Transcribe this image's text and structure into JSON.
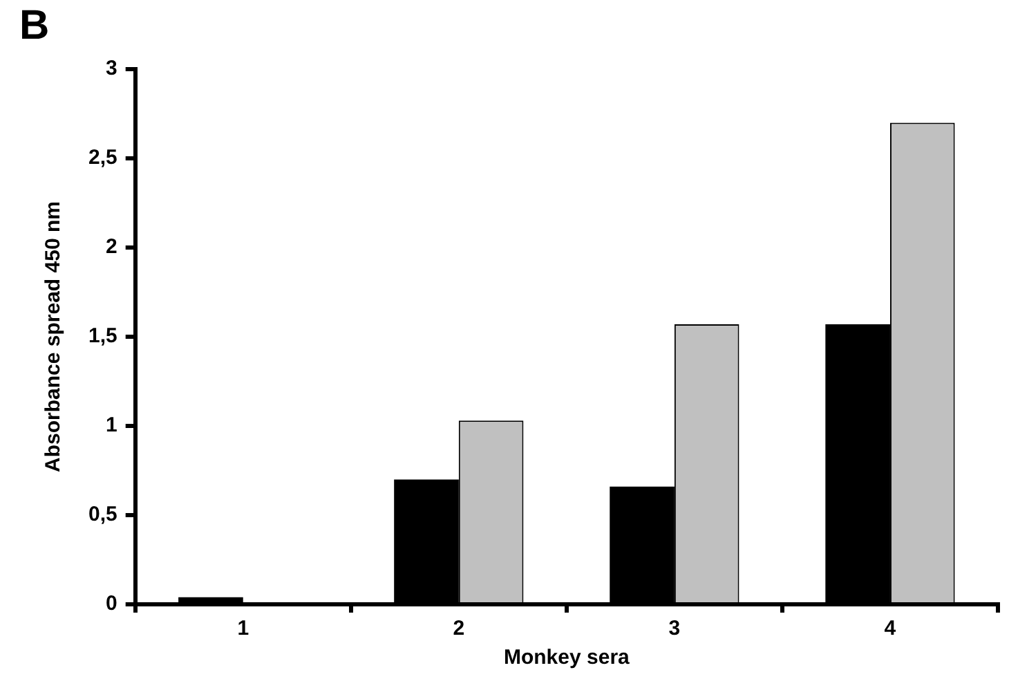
{
  "chart_data": {
    "type": "bar",
    "title": "B",
    "xlabel": "Monkey sera",
    "ylabel": "Absorbance spread 450 nm",
    "categories": [
      "1",
      "2",
      "3",
      "4"
    ],
    "series": [
      {
        "color": "#000000",
        "values": [
          0.04,
          0.7,
          0.66,
          1.57
        ]
      },
      {
        "color": "#c0c0c0",
        "values": [
          0,
          1.03,
          1.57,
          2.7
        ]
      }
    ],
    "ylim": [
      0,
      3
    ],
    "yticks": [
      0,
      {
        "value": 0.5,
        "label": "0,5"
      },
      1,
      {
        "value": 1.5,
        "label": "1,5"
      },
      2,
      {
        "value": 2.5,
        "label": "2,5"
      },
      3
    ],
    "grid": false,
    "legend": false
  }
}
